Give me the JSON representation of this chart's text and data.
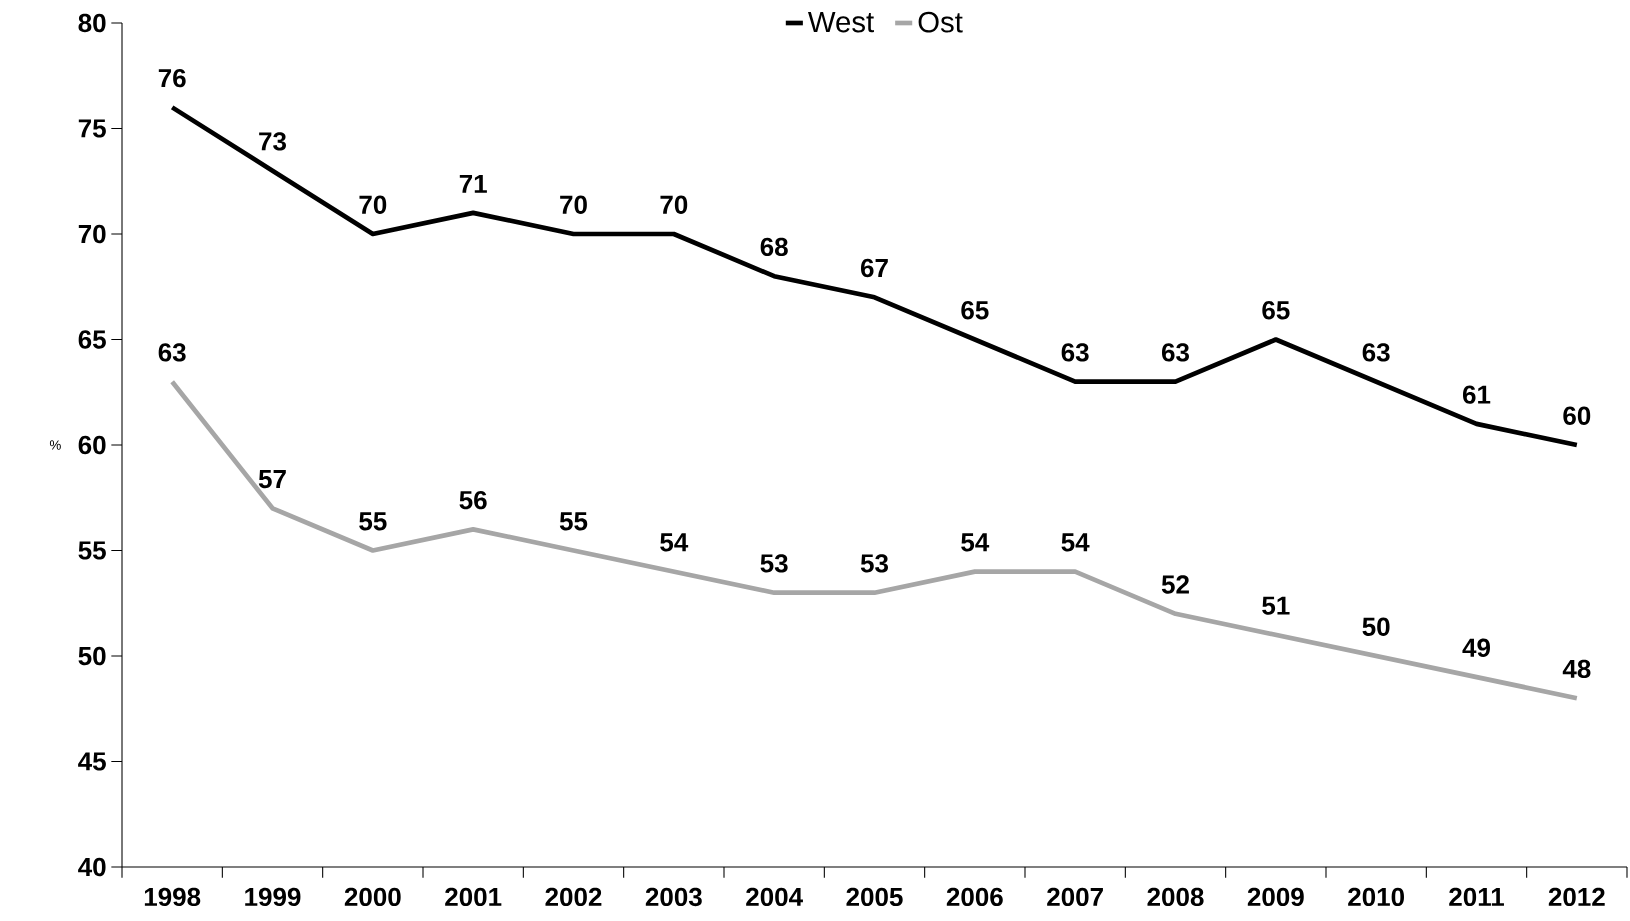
{
  "chart_data": {
    "type": "line",
    "ylabel": "%",
    "categories": [
      "1998",
      "1999",
      "2000",
      "2001",
      "2002",
      "2003",
      "2004",
      "2005",
      "2006",
      "2007",
      "2008",
      "2009",
      "2010",
      "2011",
      "2012"
    ],
    "series": [
      {
        "name": "West",
        "color": "#000000",
        "values": [
          76,
          73,
          70,
          71,
          70,
          70,
          68,
          67,
          65,
          63,
          63,
          65,
          63,
          61,
          60
        ]
      },
      {
        "name": "Ost",
        "color": "#a6a6a6",
        "values": [
          63,
          57,
          55,
          56,
          55,
          54,
          53,
          53,
          54,
          54,
          52,
          51,
          50,
          49,
          48
        ]
      }
    ],
    "ylim": [
      40,
      80
    ],
    "yticks": [
      40,
      45,
      50,
      55,
      60,
      65,
      70,
      75,
      80
    ],
    "data_labels": true,
    "legend": "top",
    "grid": false,
    "marker": "none",
    "line_style": "solid"
  }
}
